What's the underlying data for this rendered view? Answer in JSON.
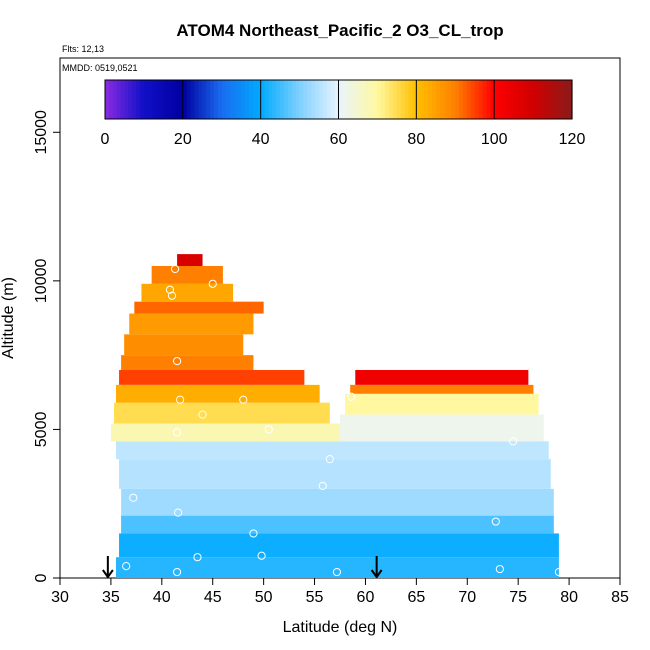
{
  "chart_data": {
    "type": "heatmap",
    "title": "ATOM4 Northeast_Pacific_2 O3_CL_trop",
    "annotations": {
      "flights": "Flts: 12,13",
      "dates": "MMDD: 0519,0521"
    },
    "xlabel": "Latitude (deg N)",
    "ylabel": "Altitude (m)",
    "xlim": [
      30,
      85
    ],
    "ylim": [
      0,
      17500
    ],
    "xticks": [
      "30",
      "35",
      "40",
      "45",
      "50",
      "55",
      "60",
      "65",
      "70",
      "75",
      "80",
      "85"
    ],
    "yticks": [
      "0",
      "5000",
      "10000",
      "15000"
    ],
    "colorbar": {
      "min": 0,
      "max": 120,
      "ticks": [
        "0",
        "20",
        "40",
        "60",
        "80",
        "100",
        "120"
      ]
    },
    "colorscale": [
      [
        0,
        "#8a2be2"
      ],
      [
        10,
        "#1010c8"
      ],
      [
        20,
        "#0000a0"
      ],
      [
        30,
        "#1a6cf0"
      ],
      [
        40,
        "#00aaff"
      ],
      [
        50,
        "#7fd0ff"
      ],
      [
        60,
        "#e8f4ff"
      ],
      [
        70,
        "#fff8a0"
      ],
      [
        80,
        "#ffc000"
      ],
      [
        90,
        "#ff8000"
      ],
      [
        100,
        "#ff0000"
      ],
      [
        110,
        "#d00000"
      ],
      [
        120,
        "#8b1a1a"
      ]
    ],
    "curtain_segments": [
      {
        "lat_range": [
          34.8,
          57.5
        ],
        "cells": [
          {
            "lat": [
              35.5,
              79
            ],
            "alt": [
              0,
              700
            ],
            "value": 43
          },
          {
            "lat": [
              35.8,
              79
            ],
            "alt": [
              700,
              1500
            ],
            "value": 41
          },
          {
            "lat": [
              36.0,
              78.5
            ],
            "alt": [
              1500,
              2100
            ],
            "value": 46
          },
          {
            "lat": [
              36.0,
              78.5
            ],
            "alt": [
              2100,
              3000
            ],
            "value": 53
          },
          {
            "lat": [
              35.8,
              78.2
            ],
            "alt": [
              3000,
              4000
            ],
            "value": 55
          },
          {
            "lat": [
              35.5,
              78.0
            ],
            "alt": [
              4000,
              4600
            ],
            "value": 56
          },
          {
            "lat": [
              35.0,
              57.5
            ],
            "alt": [
              4600,
              5200
            ],
            "value": 68
          },
          {
            "lat": [
              35.3,
              56.5
            ],
            "alt": [
              5200,
              5900
            ],
            "value": 75
          },
          {
            "lat": [
              35.5,
              55.5
            ],
            "alt": [
              5900,
              6500
            ],
            "value": 83
          },
          {
            "lat": [
              35.8,
              54.0
            ],
            "alt": [
              6500,
              7000
            ],
            "value": 95
          },
          {
            "lat": [
              36.0,
              49.0
            ],
            "alt": [
              7000,
              7500
            ],
            "value": 90
          },
          {
            "lat": [
              36.3,
              48.0
            ],
            "alt": [
              7500,
              8200
            ],
            "value": 88
          },
          {
            "lat": [
              36.8,
              49.0
            ],
            "alt": [
              8200,
              8900
            ],
            "value": 86
          },
          {
            "lat": [
              37.3,
              50.0
            ],
            "alt": [
              8900,
              9300
            ],
            "value": 92
          },
          {
            "lat": [
              38.0,
              47.0
            ],
            "alt": [
              9300,
              9900
            ],
            "value": 84
          },
          {
            "lat": [
              39.0,
              46.0
            ],
            "alt": [
              9900,
              10500
            ],
            "value": 90
          },
          {
            "lat": [
              41.5,
              44.0
            ],
            "alt": [
              10500,
              10900
            ],
            "value": 108
          }
        ]
      },
      {
        "lat_range": [
          57.5,
          78
        ],
        "cells": [
          {
            "lat": [
              57.5,
              77.5
            ],
            "alt": [
              4600,
              5500
            ],
            "value": 62
          },
          {
            "lat": [
              58.0,
              77.0
            ],
            "alt": [
              5500,
              6200
            ],
            "value": 70
          },
          {
            "lat": [
              58.5,
              76.5
            ],
            "alt": [
              6200,
              6500
            ],
            "value": 90
          },
          {
            "lat": [
              59.0,
              76.0
            ],
            "alt": [
              6500,
              7000
            ],
            "value": 103
          }
        ]
      }
    ],
    "sample_points": [
      [
        36.5,
        400
      ],
      [
        35.6,
        2800
      ],
      [
        37.2,
        2700
      ],
      [
        41.5,
        200
      ],
      [
        43.5,
        700
      ],
      [
        49.8,
        750
      ],
      [
        57.2,
        200
      ],
      [
        73.2,
        300
      ],
      [
        79.0,
        200
      ],
      [
        41.6,
        2200
      ],
      [
        49.0,
        1500
      ],
      [
        55.8,
        3100
      ],
      [
        56.5,
        4000
      ],
      [
        72.8,
        1900
      ],
      [
        74.5,
        4600
      ],
      [
        41.5,
        4900
      ],
      [
        50.5,
        5000
      ],
      [
        44.0,
        5500
      ],
      [
        41.8,
        6000
      ],
      [
        48.0,
        6000
      ],
      [
        58.6,
        6100
      ],
      [
        77.5,
        5800
      ],
      [
        41.5,
        7300
      ],
      [
        41.0,
        9500
      ],
      [
        45.0,
        9900
      ],
      [
        41.3,
        10400
      ],
      [
        47.2,
        10300
      ],
      [
        40.8,
        9700
      ]
    ],
    "arrows_at_lat": [
      34.7,
      61.1
    ],
    "grid": false,
    "legend": "colorbar-top"
  }
}
